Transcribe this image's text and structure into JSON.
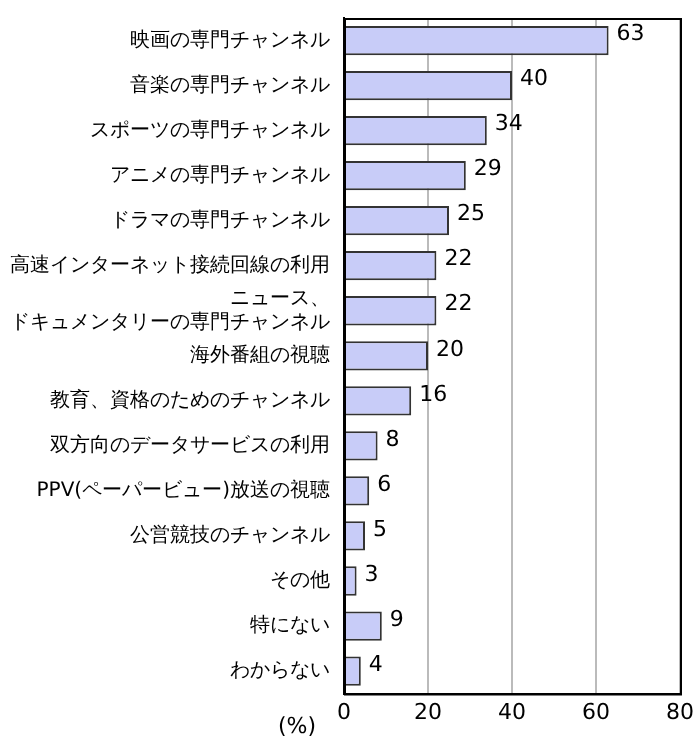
{
  "chart_data": {
    "type": "bar",
    "orientation": "horizontal",
    "xlabel": "(%)",
    "categories": [
      "映画の専門チャンネル",
      "音楽の専門チャンネル",
      "スポーツの専門チャンネル",
      "アニメの専門チャンネル",
      "ドラマの専門チャンネル",
      "高速インターネット接続回線の利用",
      "ニュース、ドキュメンタリーの専門チャンネル",
      "海外番組の視聴",
      "教育、資格のためのチャンネル",
      "双方向のデータサービスの利用",
      "PPV(ペーパービュー)放送の視聴",
      "公営競技のチャンネル",
      "その他",
      "特にない",
      "わからない"
    ],
    "values": [
      63,
      40,
      34,
      29,
      25,
      22,
      22,
      20,
      16,
      8,
      6,
      5,
      3,
      9,
      4
    ],
    "color": "#c8ccf8",
    "xlim": [
      0,
      80
    ],
    "xticks": [
      0,
      20,
      40,
      60,
      80
    ],
    "grid": "x",
    "data_labels": true,
    "legend": false
  }
}
